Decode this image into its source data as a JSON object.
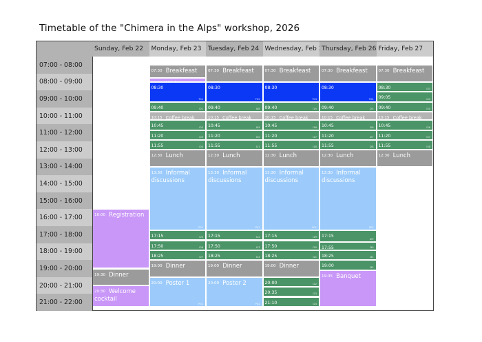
{
  "title": "Timetable of the \"Chimera in the Alps\" workshop, 2026",
  "colors": {
    "meal": "#9b9b9b",
    "coffee": "#b4b4b4",
    "talk": "#4b9467",
    "keynote": "#0b38f5",
    "social": "#c997f8",
    "discussion": "#9ccbfb",
    "header_dark": "#b3b3b3",
    "header_light": "#cccccc"
  },
  "days": [
    {
      "label": "Sunday, Feb 22"
    },
    {
      "label": "Monday, Feb 23"
    },
    {
      "label": "Tuesday, Feb 24"
    },
    {
      "label": "Wednesday, Feb 25"
    },
    {
      "label": "Thursday, Feb 26"
    },
    {
      "label": "Friday, Feb 27"
    }
  ],
  "time_slots": [
    "07:00 - 08:00",
    "08:00 - 09:00",
    "09:00 - 10:00",
    "10:00 - 11:00",
    "11:00 - 12:00",
    "12:00 - 13:00",
    "13:00 - 14:00",
    "14:00 - 15:00",
    "15:00 - 16:00",
    "16:00 - 17:00",
    "17:00 - 18:00",
    "18:00 - 19:00",
    "19:00 - 20:00",
    "20:00 - 21:00",
    "21:00 - 22:00"
  ],
  "events": [
    {
      "day": 0,
      "start": "16:00",
      "end": "19:30",
      "name": "Registration",
      "type": "social",
      "code": ""
    },
    {
      "day": 0,
      "start": "19:30",
      "end": "20:30",
      "name": "Dinner",
      "type": "meal",
      "code": ""
    },
    {
      "day": 0,
      "start": "20:30",
      "end": "21:45",
      "name": "Welcome cocktail",
      "type": "social",
      "code": ""
    },
    {
      "day": 1,
      "start": "07:30",
      "end": "08:15",
      "name": "Breakfeast",
      "type": "meal",
      "code": ""
    },
    {
      "day": 1,
      "start": "08:15",
      "end": "08:30",
      "name": "Welcome Address",
      "type": "social",
      "code": ""
    },
    {
      "day": 1,
      "start": "08:30",
      "end": "09:40",
      "name": "",
      "type": "keynote",
      "code": "T01"
    },
    {
      "day": 1,
      "start": "09:40",
      "end": "10:15",
      "name": "",
      "type": "talk",
      "code": "I01"
    },
    {
      "day": 1,
      "start": "10:15",
      "end": "10:45",
      "name": "Coffee break",
      "type": "coffee",
      "code": ""
    },
    {
      "day": 1,
      "start": "10:45",
      "end": "11:20",
      "name": "",
      "type": "talk",
      "code": "I02"
    },
    {
      "day": 1,
      "start": "11:20",
      "end": "11:55",
      "name": "",
      "type": "talk",
      "code": "I03"
    },
    {
      "day": 1,
      "start": "11:55",
      "end": "12:30",
      "name": "",
      "type": "talk",
      "code": "I04"
    },
    {
      "day": 1,
      "start": "12:30",
      "end": "13:30",
      "name": "Lunch",
      "type": "meal",
      "code": ""
    },
    {
      "day": 1,
      "start": "13:30",
      "end": "17:15",
      "name": "Informal discussions",
      "type": "discussion",
      "code": "P01"
    },
    {
      "day": 1,
      "start": "17:15",
      "end": "17:50",
      "name": "",
      "type": "talk",
      "code": "I05"
    },
    {
      "day": 1,
      "start": "17:50",
      "end": "18:25",
      "name": "",
      "type": "talk",
      "code": "I06"
    },
    {
      "day": 1,
      "start": "18:25",
      "end": "19:00",
      "name": "",
      "type": "talk",
      "code": "I07"
    },
    {
      "day": 1,
      "start": "19:00",
      "end": "20:00",
      "name": "Dinner",
      "type": "meal",
      "code": ""
    },
    {
      "day": 1,
      "start": "20:00",
      "end": "21:45",
      "name": "Poster 1",
      "type": "discussion",
      "code": "P01"
    },
    {
      "day": 2,
      "start": "07:30",
      "end": "08:30",
      "name": "Breakfeast",
      "type": "meal",
      "code": ""
    },
    {
      "day": 2,
      "start": "08:30",
      "end": "09:40",
      "name": "",
      "type": "keynote",
      "code": "T02"
    },
    {
      "day": 2,
      "start": "09:40",
      "end": "10:15",
      "name": "",
      "type": "talk",
      "code": "I08"
    },
    {
      "day": 2,
      "start": "10:15",
      "end": "10:45",
      "name": "Coffee break",
      "type": "coffee",
      "code": ""
    },
    {
      "day": 2,
      "start": "10:45",
      "end": "11:20",
      "name": "",
      "type": "talk",
      "code": "I09"
    },
    {
      "day": 2,
      "start": "11:20",
      "end": "11:55",
      "name": "",
      "type": "talk",
      "code": "I10"
    },
    {
      "day": 2,
      "start": "11:55",
      "end": "12:30",
      "name": "",
      "type": "talk",
      "code": "I11"
    },
    {
      "day": 2,
      "start": "12:30",
      "end": "13:30",
      "name": "Lunch",
      "type": "meal",
      "code": ""
    },
    {
      "day": 2,
      "start": "13:30",
      "end": "17:15",
      "name": "Informal discussions",
      "type": "discussion",
      "code": "P01"
    },
    {
      "day": 2,
      "start": "17:15",
      "end": "17:50",
      "name": "",
      "type": "talk",
      "code": "I12"
    },
    {
      "day": 2,
      "start": "17:50",
      "end": "18:25",
      "name": "",
      "type": "talk",
      "code": "I13"
    },
    {
      "day": 2,
      "start": "18:25",
      "end": "19:00",
      "name": "",
      "type": "talk",
      "code": "I14"
    },
    {
      "day": 2,
      "start": "19:00",
      "end": "20:00",
      "name": "Dinner",
      "type": "meal",
      "code": ""
    },
    {
      "day": 2,
      "start": "20:00",
      "end": "21:45",
      "name": "Poster 2",
      "type": "discussion",
      "code": "P02"
    },
    {
      "day": 3,
      "start": "07:30",
      "end": "08:30",
      "name": "Breakfeast",
      "type": "meal",
      "code": ""
    },
    {
      "day": 3,
      "start": "08:30",
      "end": "09:40",
      "name": "",
      "type": "keynote",
      "code": "T03"
    },
    {
      "day": 3,
      "start": "09:40",
      "end": "10:15",
      "name": "",
      "type": "talk",
      "code": "I15"
    },
    {
      "day": 3,
      "start": "10:15",
      "end": "10:45",
      "name": "Coffee break",
      "type": "coffee",
      "code": ""
    },
    {
      "day": 3,
      "start": "10:45",
      "end": "11:20",
      "name": "",
      "type": "talk",
      "code": "I16"
    },
    {
      "day": 3,
      "start": "11:20",
      "end": "11:55",
      "name": "",
      "type": "talk",
      "code": "I17"
    },
    {
      "day": 3,
      "start": "11:55",
      "end": "12:30",
      "name": "",
      "type": "talk",
      "code": "I18"
    },
    {
      "day": 3,
      "start": "12:30",
      "end": "13:30",
      "name": "Lunch",
      "type": "meal",
      "code": ""
    },
    {
      "day": 3,
      "start": "13:30",
      "end": "17:15",
      "name": "Informal discussions",
      "type": "discussion",
      "code": "P01"
    },
    {
      "day": 3,
      "start": "17:15",
      "end": "17:50",
      "name": "",
      "type": "talk",
      "code": "I19"
    },
    {
      "day": 3,
      "start": "17:50",
      "end": "18:25",
      "name": "",
      "type": "talk",
      "code": "I20"
    },
    {
      "day": 3,
      "start": "18:25",
      "end": "19:00",
      "name": "",
      "type": "talk",
      "code": "I21"
    },
    {
      "day": 3,
      "start": "19:00",
      "end": "20:00",
      "name": "Dinner",
      "type": "meal",
      "code": ""
    },
    {
      "day": 3,
      "start": "20:00",
      "end": "20:35",
      "name": "",
      "type": "talk",
      "code": "I22"
    },
    {
      "day": 3,
      "start": "20:35",
      "end": "21:10",
      "name": "",
      "type": "talk",
      "code": "I23"
    },
    {
      "day": 3,
      "start": "21:10",
      "end": "21:45",
      "name": "",
      "type": "talk",
      "code": "I24"
    },
    {
      "day": 4,
      "start": "07:30",
      "end": "08:30",
      "name": "Breakfeast",
      "type": "meal",
      "code": ""
    },
    {
      "day": 4,
      "start": "08:30",
      "end": "09:40",
      "name": "",
      "type": "keynote",
      "code": "T04"
    },
    {
      "day": 4,
      "start": "09:40",
      "end": "10:15",
      "name": "",
      "type": "talk",
      "code": "I25"
    },
    {
      "day": 4,
      "start": "10:15",
      "end": "10:45",
      "name": "Coffee break",
      "type": "coffee",
      "code": ""
    },
    {
      "day": 4,
      "start": "10:45",
      "end": "11:20",
      "name": "",
      "type": "talk",
      "code": "I26"
    },
    {
      "day": 4,
      "start": "11:20",
      "end": "11:55",
      "name": "",
      "type": "talk",
      "code": "I27"
    },
    {
      "day": 4,
      "start": "11:55",
      "end": "12:30",
      "name": "",
      "type": "talk",
      "code": "I28"
    },
    {
      "day": 4,
      "start": "12:30",
      "end": "13:30",
      "name": "Lunch",
      "type": "meal",
      "code": ""
    },
    {
      "day": 4,
      "start": "13:30",
      "end": "17:15",
      "name": "Informal discussions",
      "type": "discussion",
      "code": "P03"
    },
    {
      "day": 4,
      "start": "17:15",
      "end": "17:55",
      "name": "",
      "type": "talk",
      "code": "I29"
    },
    {
      "day": 4,
      "start": "17:55",
      "end": "18:25",
      "name": "",
      "type": "talk",
      "code": "I30"
    },
    {
      "day": 4,
      "start": "18:25",
      "end": "19:00",
      "name": "",
      "type": "talk",
      "code": "I31"
    },
    {
      "day": 4,
      "start": "19:00",
      "end": "19:35",
      "name": "",
      "type": "talk",
      "code": "I32"
    },
    {
      "day": 4,
      "start": "19:35",
      "end": "21:45",
      "name": "Banquet",
      "type": "social",
      "code": ""
    },
    {
      "day": 5,
      "start": "07:30",
      "end": "08:30",
      "name": "Breakfeast",
      "type": "meal",
      "code": ""
    },
    {
      "day": 5,
      "start": "08:30",
      "end": "09:05",
      "name": "",
      "type": "talk",
      "code": "I33"
    },
    {
      "day": 5,
      "start": "09:05",
      "end": "09:40",
      "name": "",
      "type": "talk",
      "code": "I34"
    },
    {
      "day": 5,
      "start": "09:40",
      "end": "10:15",
      "name": "",
      "type": "talk",
      "code": "I35"
    },
    {
      "day": 5,
      "start": "10:15",
      "end": "10:45",
      "name": "Coffee break",
      "type": "coffee",
      "code": ""
    },
    {
      "day": 5,
      "start": "10:45",
      "end": "11:20",
      "name": "",
      "type": "talk",
      "code": "I36"
    },
    {
      "day": 5,
      "start": "11:20",
      "end": "11:55",
      "name": "",
      "type": "talk",
      "code": "I37"
    },
    {
      "day": 5,
      "start": "11:55",
      "end": "12:30",
      "name": "",
      "type": "talk",
      "code": "I38"
    },
    {
      "day": 5,
      "start": "12:30",
      "end": "13:30",
      "name": "Lunch",
      "type": "meal",
      "code": ""
    }
  ]
}
